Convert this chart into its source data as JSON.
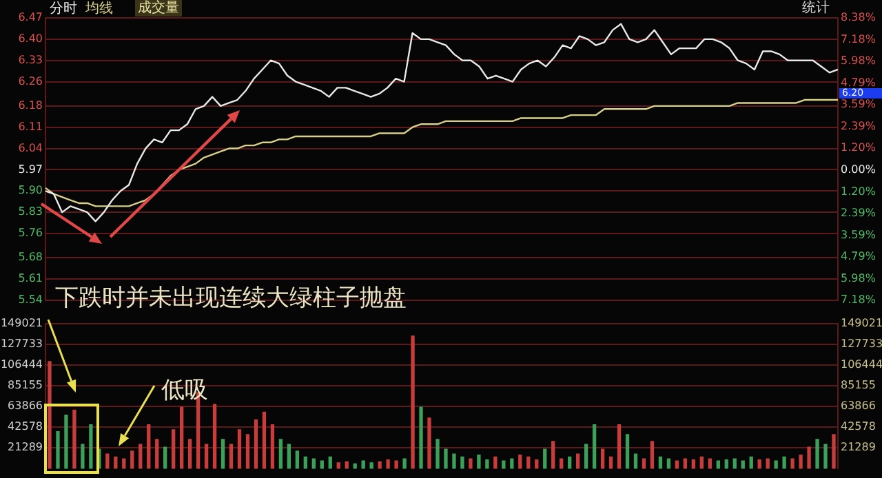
{
  "chart_data": [
    {
      "type": "line",
      "categories": [
        null,
        null,
        null,
        null,
        null,
        null,
        null,
        null,
        null,
        null,
        null,
        null,
        null,
        null,
        null,
        null,
        null,
        null,
        null,
        null,
        null,
        null,
        null,
        null,
        null,
        null,
        null,
        null,
        null,
        null,
        null,
        null,
        null,
        null,
        null,
        null,
        null,
        null,
        null,
        null,
        null,
        null,
        null,
        null,
        null,
        null,
        null,
        null,
        null,
        null,
        null,
        null,
        null,
        null,
        null,
        null,
        null,
        null,
        null,
        null,
        null,
        null,
        null,
        null,
        null,
        null,
        null,
        null,
        null,
        null,
        null,
        null,
        null,
        null,
        null,
        null,
        null,
        null,
        null,
        null,
        null,
        null,
        null,
        null,
        null,
        null,
        null,
        null,
        null,
        null,
        null,
        null,
        null,
        null,
        null,
        null
      ],
      "ylim": [
        5.54,
        6.47
      ],
      "yticks": [
        6.47,
        {
          "value": 6.4,
          "label": "6.40"
        },
        6.33,
        6.26,
        6.18,
        6.11,
        6.04,
        5.97,
        {
          "value": 5.9,
          "label": "5.90"
        },
        5.83,
        5.76,
        5.68,
        5.61,
        5.54
      ],
      "y2lim": [
        -7.18,
        8.38
      ],
      "y2ticks": [
        {
          "value": 8.38,
          "label": "8.38%"
        },
        {
          "value": 7.18,
          "label": "7.18%"
        },
        {
          "value": 5.98,
          "label": "5.98%"
        },
        {
          "value": 4.79,
          "label": "4.79%"
        },
        {
          "value": 3.59,
          "label": "3.59%"
        },
        {
          "value": 2.39,
          "label": "2.39%"
        },
        {
          "value": 1.2,
          "label": "1.20%"
        },
        {
          "value": 0,
          "label": "0.00%"
        },
        {
          "value": -1.2,
          "label": "1.20%"
        },
        {
          "value": -2.39,
          "label": "2.39%"
        },
        {
          "value": -3.59,
          "label": "3.59%"
        },
        {
          "value": -4.79,
          "label": "4.79%"
        },
        {
          "value": -5.98,
          "label": "5.98%"
        },
        {
          "value": -7.18,
          "label": "7.18%"
        }
      ],
      "grid": "y",
      "legend": "top left",
      "marker": "none",
      "annotations": [
        "统计",
        "下跌时并未出现连续大绿柱子抛盘",
        "6.20",
        "成交量"
      ],
      "series": [
        {
          "name": "分时",
          "color": "#e8e8e8",
          "values": [
            5.9,
            5.89,
            5.83,
            5.85,
            5.84,
            5.83,
            5.8,
            5.83,
            5.87,
            5.9,
            5.92,
            5.99,
            6.04,
            6.07,
            6.06,
            6.1,
            6.1,
            6.12,
            6.17,
            6.18,
            6.21,
            6.18,
            6.19,
            6.2,
            6.23,
            6.27,
            6.3,
            6.33,
            6.32,
            6.28,
            6.26,
            6.25,
            6.24,
            6.23,
            6.21,
            6.24,
            6.24,
            6.23,
            6.22,
            6.21,
            6.22,
            6.24,
            6.27,
            6.26,
            6.42,
            6.4,
            6.4,
            6.39,
            6.38,
            6.35,
            6.33,
            6.33,
            6.31,
            6.27,
            6.28,
            6.27,
            6.26,
            6.3,
            6.32,
            6.33,
            6.31,
            6.34,
            6.38,
            6.37,
            6.41,
            6.4,
            6.38,
            6.39,
            6.43,
            6.45,
            6.4,
            6.39,
            6.4,
            6.43,
            6.39,
            6.35,
            6.37,
            6.37,
            6.37,
            6.4,
            6.4,
            6.39,
            6.37,
            6.33,
            6.32,
            6.3,
            6.36,
            6.36,
            6.35,
            6.33,
            6.33,
            6.33,
            6.33,
            6.31,
            6.29,
            6.3
          ]
        },
        {
          "name": "均线",
          "color": "#d8cf8a",
          "values": [
            5.91,
            5.89,
            5.88,
            5.87,
            5.86,
            5.86,
            5.85,
            5.85,
            5.85,
            5.85,
            5.85,
            5.86,
            5.87,
            5.89,
            5.92,
            5.95,
            5.97,
            5.98,
            5.99,
            6.01,
            6.02,
            6.03,
            6.04,
            6.04,
            6.05,
            6.05,
            6.06,
            6.06,
            6.07,
            6.07,
            6.08,
            6.08,
            6.08,
            6.08,
            6.08,
            6.08,
            6.08,
            6.08,
            6.08,
            6.08,
            6.09,
            6.09,
            6.09,
            6.09,
            6.11,
            6.12,
            6.12,
            6.12,
            6.13,
            6.13,
            6.13,
            6.13,
            6.13,
            6.13,
            6.13,
            6.13,
            6.13,
            6.14,
            6.14,
            6.14,
            6.14,
            6.14,
            6.14,
            6.15,
            6.15,
            6.15,
            6.15,
            6.17,
            6.17,
            6.17,
            6.17,
            6.17,
            6.17,
            6.18,
            6.18,
            6.18,
            6.18,
            6.18,
            6.18,
            6.18,
            6.18,
            6.18,
            6.18,
            6.19,
            6.19,
            6.19,
            6.19,
            6.19,
            6.19,
            6.19,
            6.19,
            6.2,
            6.2,
            6.2,
            6.2,
            6.2
          ]
        }
      ]
    },
    {
      "type": "bar",
      "categories": [
        null,
        null,
        null,
        null,
        null,
        null,
        null,
        null,
        null,
        null,
        null,
        null,
        null,
        null,
        null,
        null,
        null,
        null,
        null,
        null,
        null,
        null,
        null,
        null,
        null,
        null,
        null,
        null,
        null,
        null,
        null,
        null,
        null,
        null,
        null,
        null,
        null,
        null,
        null,
        null,
        null,
        null,
        null,
        null,
        null,
        null,
        null,
        null,
        null,
        null,
        null,
        null,
        null,
        null,
        null,
        null,
        null,
        null,
        null,
        null,
        null,
        null,
        null,
        null,
        null,
        null,
        null,
        null,
        null,
        null,
        null,
        null,
        null,
        null,
        null,
        null,
        null,
        null,
        null,
        null,
        null,
        null,
        null,
        null,
        null,
        null,
        null,
        null,
        null,
        null,
        null,
        null,
        null,
        null,
        null,
        null
      ],
      "values": [
        110000,
        38000,
        55000,
        60000,
        25000,
        45000,
        20000,
        15000,
        12000,
        10000,
        18000,
        25000,
        45000,
        30000,
        22000,
        40000,
        63000,
        30000,
        78000,
        25000,
        66000,
        30000,
        25000,
        40000,
        35000,
        50000,
        58000,
        45000,
        30000,
        25000,
        18000,
        12000,
        10000,
        8000,
        12000,
        6000,
        7000,
        5000,
        8000,
        6000,
        7000,
        9000,
        8000,
        10000,
        136000,
        63000,
        52000,
        30000,
        20000,
        15000,
        12000,
        10000,
        14000,
        9000,
        12000,
        8000,
        10000,
        14000,
        12000,
        9000,
        20000,
        28000,
        10000,
        12000,
        15000,
        25000,
        45000,
        20000,
        12000,
        45000,
        35000,
        15000,
        10000,
        28000,
        12000,
        10000,
        8000,
        10000,
        9000,
        12000,
        10000,
        8000,
        9000,
        10000,
        8000,
        12000,
        9000,
        10000,
        8000,
        12000,
        10000,
        14000,
        22000,
        30000,
        25000,
        35000
      ],
      "colors": [
        "#c83c3c",
        "#3ca05a",
        "#3ca05a",
        "#c83c3c",
        "#3ca05a",
        "#3ca05a",
        "#3ca05a",
        "#c83c3c",
        "#c83c3c",
        "#c83c3c",
        "#c83c3c",
        "#c83c3c",
        "#c83c3c",
        "#c83c3c",
        "#3ca05a",
        "#c83c3c",
        "#c83c3c",
        "#c83c3c",
        "#c83c3c",
        "#c83c3c",
        "#c83c3c",
        "#3ca05a",
        "#c83c3c",
        "#c83c3c",
        "#c83c3c",
        "#c83c3c",
        "#c83c3c",
        "#c83c3c",
        "#3ca05a",
        "#3ca05a",
        "#3ca05a",
        "#3ca05a",
        "#3ca05a",
        "#3ca05a",
        "#3ca05a",
        "#c83c3c",
        "#c83c3c",
        "#3ca05a",
        "#3ca05a",
        "#3ca05a",
        "#c83c3c",
        "#c83c3c",
        "#c83c3c",
        "#3ca05a",
        "#c83c3c",
        "#3ca05a",
        "#c83c3c",
        "#3ca05a",
        "#3ca05a",
        "#3ca05a",
        "#3ca05a",
        "#c83c3c",
        "#3ca05a",
        "#3ca05a",
        "#c83c3c",
        "#3ca05a",
        "#3ca05a",
        "#c83c3c",
        "#c83c3c",
        "#c83c3c",
        "#3ca05a",
        "#c83c3c",
        "#c83c3c",
        "#3ca05a",
        "#c83c3c",
        "#3ca05a",
        "#3ca05a",
        "#c83c3c",
        "#c83c3c",
        "#c83c3c",
        "#3ca05a",
        "#3ca05a",
        "#c83c3c",
        "#c83c3c",
        "#3ca05a",
        "#3ca05a",
        "#c83c3c",
        "#c83c3c",
        "#c83c3c",
        "#c83c3c",
        "#c83c3c",
        "#3ca05a",
        "#3ca05a",
        "#3ca05a",
        "#3ca05a",
        "#3ca05a",
        "#c83c3c",
        "#c83c3c",
        "#3ca05a",
        "#3ca05a",
        "#c83c3c",
        "#c83c3c",
        "#c83c3c",
        "#3ca05a",
        "#3ca05a",
        "#c83c3c"
      ],
      "ylim": [
        0,
        149021
      ],
      "yticks": [
        21289,
        42578,
        63866,
        85155,
        106444,
        127733,
        149021
      ],
      "y2lim": [
        0,
        149021
      ],
      "y2ticks": [
        21289,
        42578,
        63866,
        85155,
        106444,
        127733,
        149021
      ],
      "grid": "y",
      "annotations": [
        "低吸"
      ]
    }
  ]
}
